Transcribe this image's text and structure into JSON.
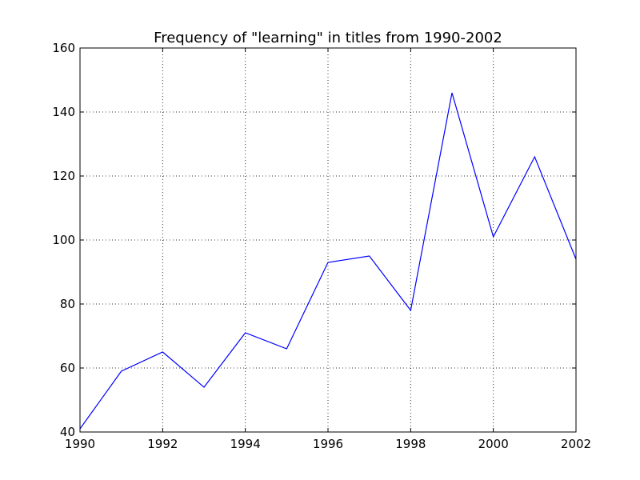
{
  "chart_data": {
    "type": "line",
    "title": "Frequency of \"learning\" in titles from 1990-2002",
    "xlabel": "",
    "ylabel": "",
    "x": [
      1990,
      1991,
      1992,
      1993,
      1994,
      1995,
      1996,
      1997,
      1998,
      1999,
      2000,
      2001,
      2002
    ],
    "series": [
      {
        "values": [
          41,
          59,
          65,
          54,
          71,
          66,
          93,
          95,
          78,
          146,
          101,
          126,
          94
        ],
        "color": "#0000ff"
      }
    ],
    "xlim": [
      1990,
      2002
    ],
    "ylim": [
      40,
      160
    ],
    "xticks": [
      1990,
      1992,
      1994,
      1996,
      1998,
      2000,
      2002
    ],
    "yticks": [
      40,
      60,
      80,
      100,
      120,
      140,
      160
    ],
    "grid": true,
    "legend": "none"
  }
}
